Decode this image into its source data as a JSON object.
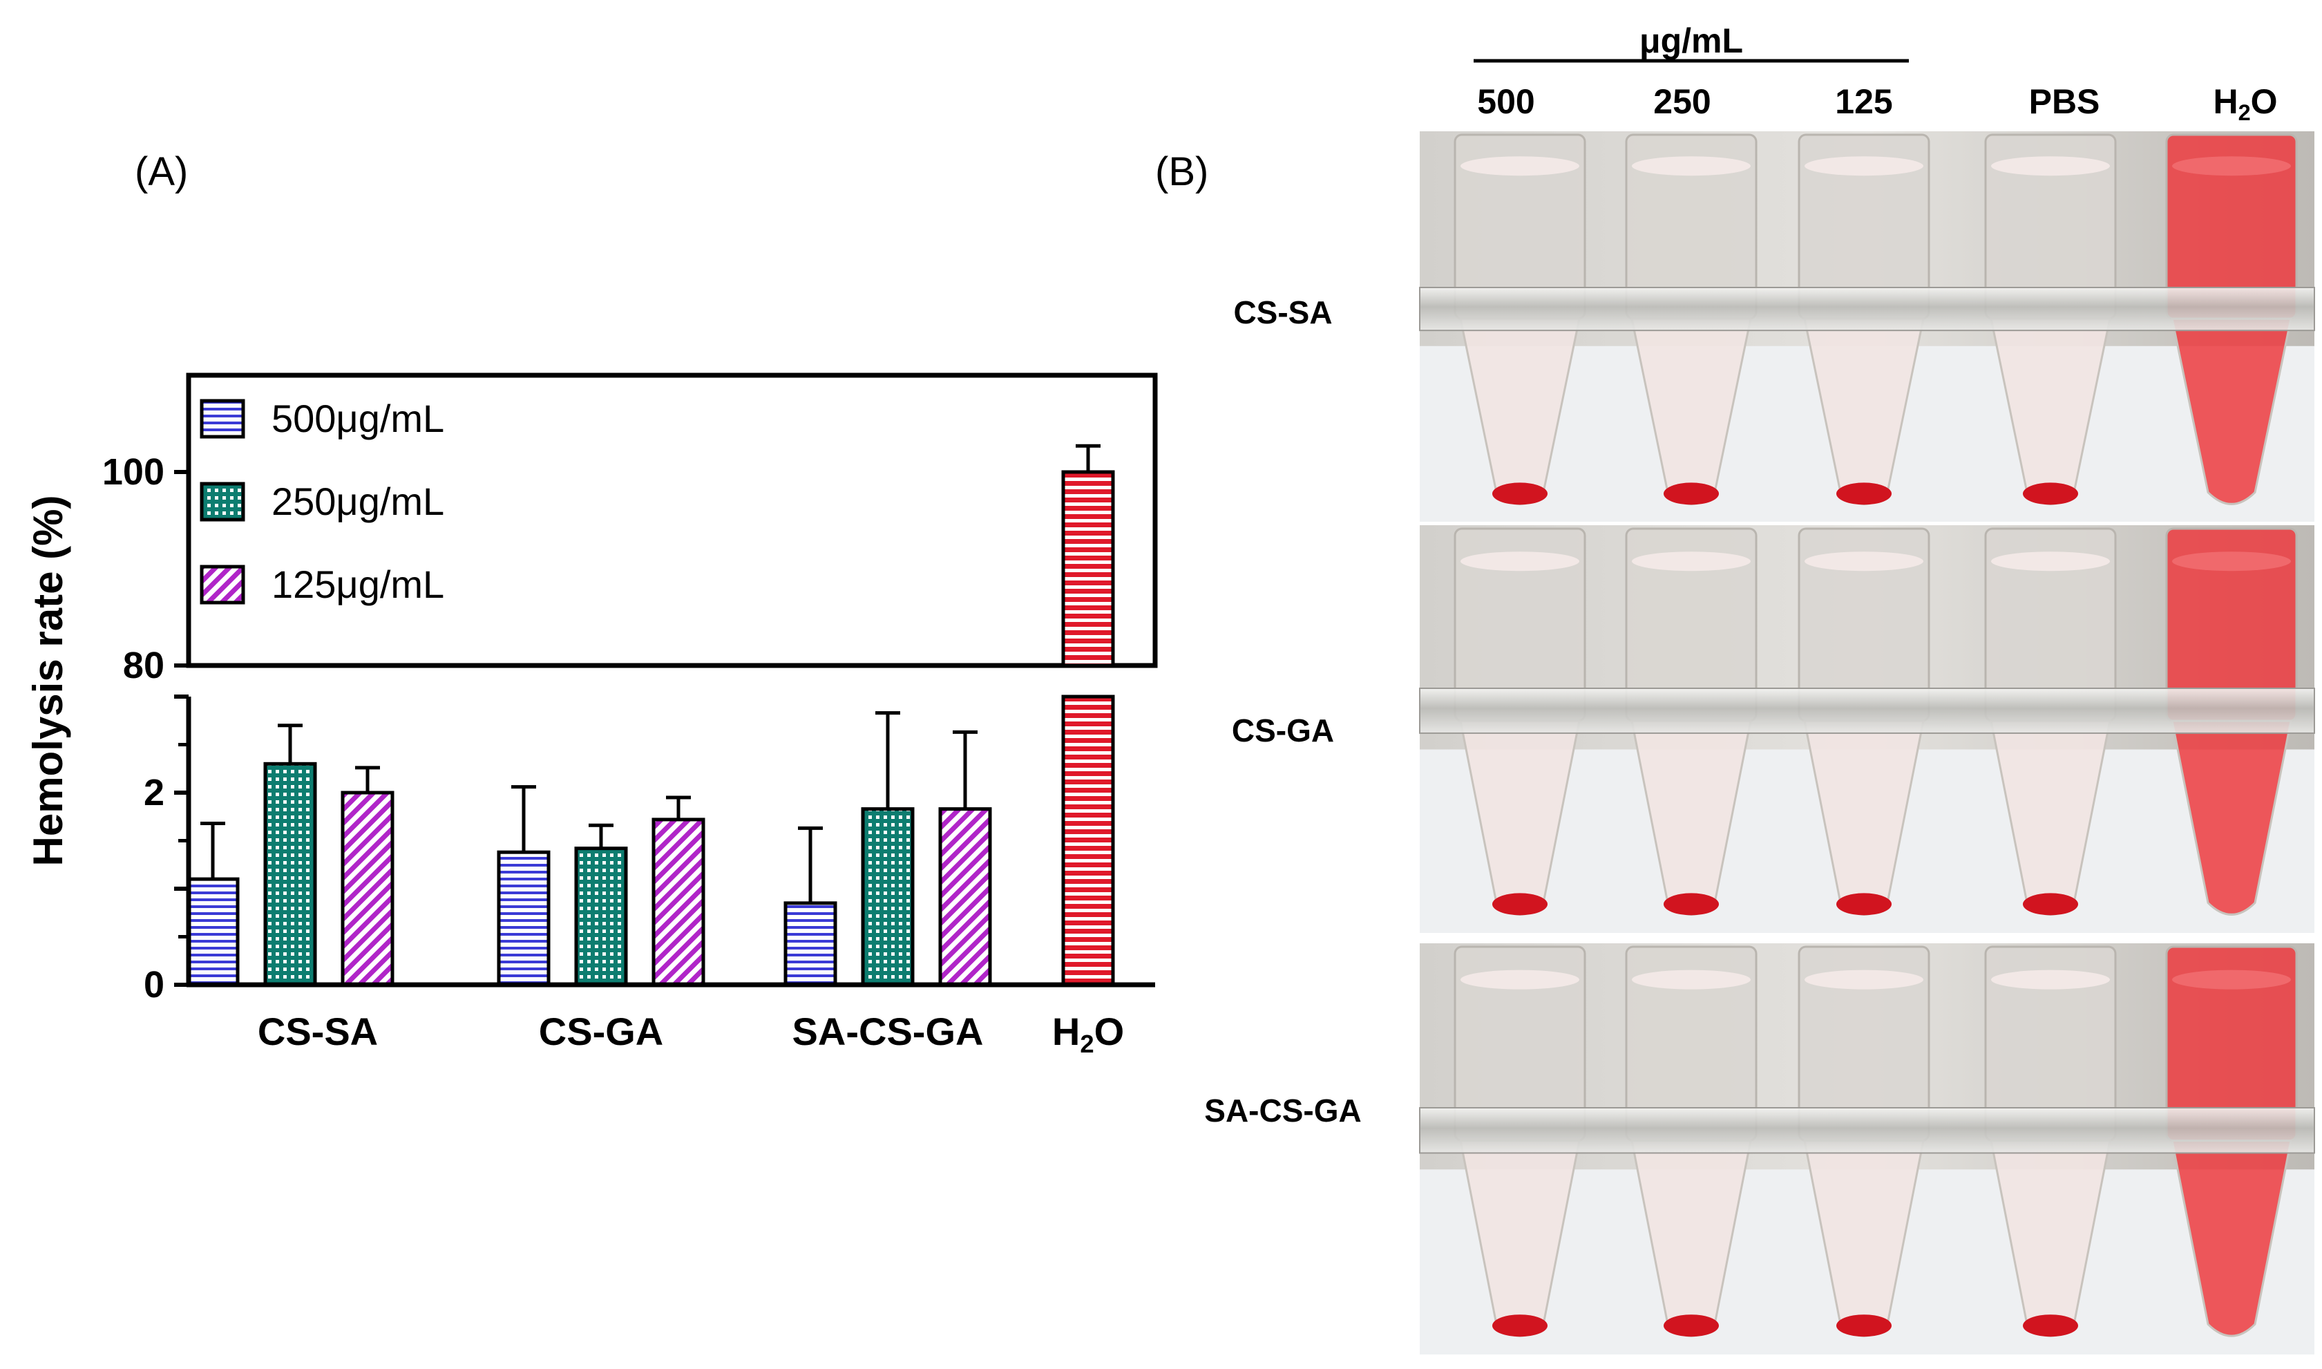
{
  "panels": {
    "a_label": "(A)",
    "b_label": "(B)"
  },
  "chart_data": {
    "type": "bar",
    "yaxis_label": "Hemolysis rate (%)",
    "categories": [
      "CS-SA",
      "CS-GA",
      "SA-CS-GA",
      "H2O"
    ],
    "category_display": [
      {
        "main": "CS-SA",
        "sub": "",
        "tail": ""
      },
      {
        "main": "CS-GA",
        "sub": "",
        "tail": ""
      },
      {
        "main": "SA-CS-GA",
        "sub": "",
        "tail": ""
      },
      {
        "main": "H",
        "sub": "2",
        "tail": "O"
      }
    ],
    "series": [
      {
        "name": "500μg/mL",
        "values": [
          1.1,
          1.38,
          0.85,
          null
        ],
        "errors": [
          0.58,
          0.68,
          0.78,
          null
        ],
        "color": "#3b3bd6",
        "pattern": "hlines"
      },
      {
        "name": "250μg/mL",
        "values": [
          2.3,
          1.42,
          1.83,
          null
        ],
        "errors": [
          0.4,
          0.24,
          1.0,
          null
        ],
        "color": "#0d7d70",
        "pattern": "grid"
      },
      {
        "name": "125μg/mL",
        "values": [
          2.0,
          1.72,
          1.83,
          null
        ],
        "errors": [
          0.26,
          0.23,
          0.8,
          null
        ],
        "color": "#b025c8",
        "pattern": "diag"
      },
      {
        "name": "H2O",
        "values": [
          null,
          null,
          null,
          100
        ],
        "errors": [
          null,
          null,
          null,
          2.7
        ],
        "color": "#e0192a",
        "pattern": "hlines-red"
      }
    ],
    "legend": [
      "500μg/mL",
      "250μg/mL",
      "125μg/mL"
    ],
    "legend_position": "top-left",
    "axis_break": {
      "lower_range": [
        0,
        3
      ],
      "upper_range": [
        80,
        110
      ]
    },
    "ticks_lower": [
      {
        "value": 0,
        "label": "0"
      },
      {
        "value": 2,
        "label": "2"
      }
    ],
    "ticks_upper": [
      {
        "value": 80,
        "label": "80"
      },
      {
        "value": 100,
        "label": "100"
      }
    ]
  },
  "photo": {
    "concentration_header": "μg/mL",
    "columns": [
      {
        "main": "500",
        "sub": "",
        "tail": ""
      },
      {
        "main": "250",
        "sub": "",
        "tail": ""
      },
      {
        "main": "125",
        "sub": "",
        "tail": ""
      },
      {
        "main": "PBS",
        "sub": "",
        "tail": ""
      },
      {
        "main": "H",
        "sub": "2",
        "tail": "O"
      }
    ],
    "rows": [
      "CS-SA",
      "CS-GA",
      "SA-CS-GA"
    ],
    "lysed_color": "#ec3b40",
    "pellet_color": "#d1141f"
  }
}
